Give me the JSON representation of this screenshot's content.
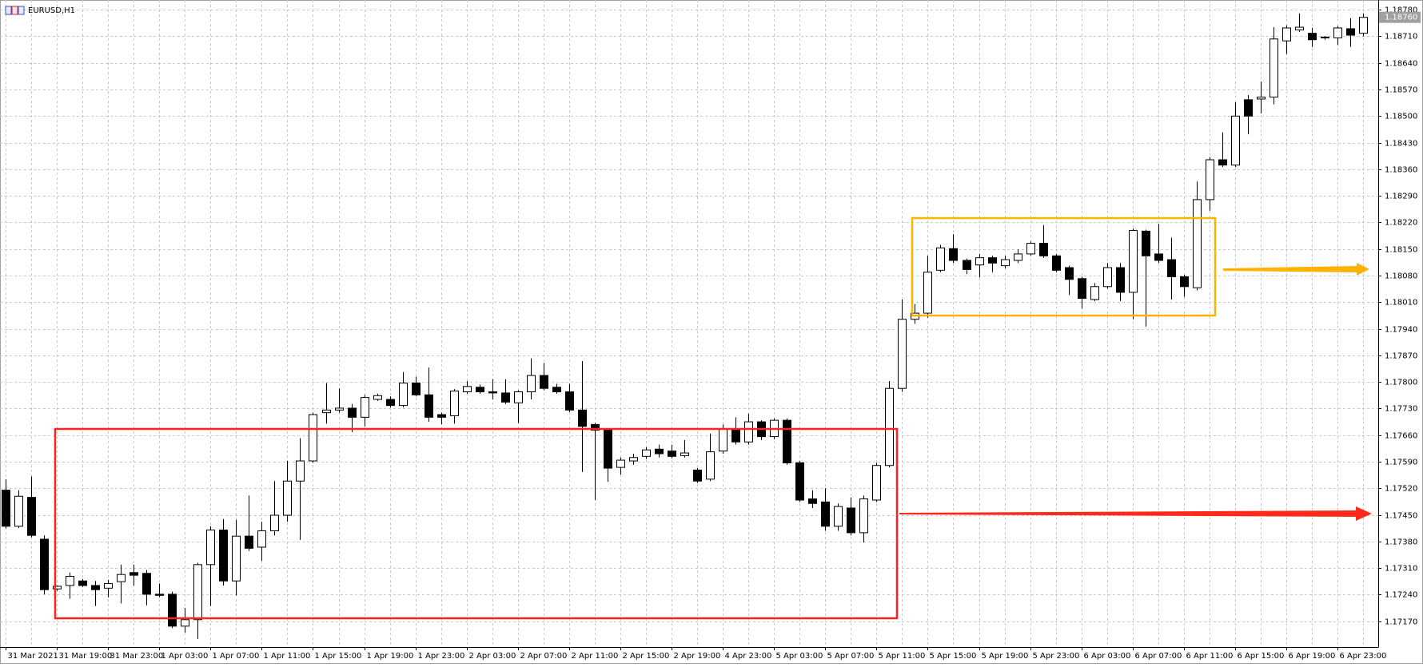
{
  "chart_data": {
    "type": "candlestick",
    "title": "EURUSD,H1",
    "categories": [
      "31 Mar 2021",
      null,
      null,
      null,
      "31 Mar 19:00",
      null,
      null,
      null,
      "31 Mar 23:00",
      null,
      null,
      null,
      "1 Apr 03:00",
      null,
      null,
      null,
      "1 Apr 07:00",
      null,
      null,
      null,
      "1 Apr 11:00",
      null,
      null,
      null,
      "1 Apr 15:00",
      null,
      null,
      null,
      "1 Apr 19:00",
      null,
      null,
      null,
      "1 Apr 23:00",
      null,
      null,
      null,
      "2 Apr 03:00",
      null,
      null,
      null,
      "2 Apr 07:00",
      null,
      null,
      null,
      "2 Apr 11:00",
      null,
      null,
      null,
      "2 Apr 15:00",
      null,
      null,
      null,
      "2 Apr 19:00",
      null,
      null,
      null,
      "4 Apr 23:00",
      null,
      null,
      null,
      "5 Apr 03:00",
      null,
      null,
      null,
      "5 Apr 07:00",
      null,
      null,
      null,
      "5 Apr 11:00",
      null,
      null,
      null,
      "5 Apr 15:00",
      null,
      null,
      null,
      "5 Apr 19:00",
      null,
      null,
      null,
      "5 Apr 23:00",
      null,
      null,
      null,
      "6 Apr 03:00",
      null,
      null,
      null,
      "6 Apr 07:00",
      null,
      null,
      null,
      "6 Apr 11:00",
      null,
      null,
      null,
      "6 Apr 15:00",
      null,
      null,
      null,
      "6 Apr 19:00",
      null,
      null,
      null,
      "6 Apr 23:00",
      null,
      null
    ],
    "open": [
      1.17515,
      1.1742,
      1.17496,
      1.17386,
      1.17255,
      1.17264,
      1.17276,
      1.17264,
      1.17257,
      1.17274,
      1.17298,
      1.17296,
      1.17241,
      1.17241,
      1.17157,
      1.17174,
      1.17319,
      1.1741,
      1.17276,
      1.17394,
      1.17365,
      1.17408,
      1.17449,
      1.17539,
      1.17592,
      1.17719,
      1.17726,
      1.17731,
      1.17707,
      1.17754,
      1.17754,
      1.17738,
      1.17797,
      1.17766,
      1.17714,
      1.17711,
      1.17774,
      1.17786,
      1.17774,
      1.17771,
      1.17745,
      1.17774,
      1.17817,
      1.17786,
      1.17774,
      1.17726,
      1.17688,
      1.17673,
      1.17575,
      1.17592,
      1.17604,
      1.17623,
      1.17618,
      1.17606,
      1.17568,
      1.17544,
      1.17618,
      1.17676,
      1.17642,
      1.17695,
      1.17656,
      1.17699,
      1.17587,
      1.17492,
      1.17484,
      1.1742,
      1.17468,
      1.17403,
      1.17489,
      1.1758,
      1.17783,
      1.17965,
      1.17981,
      1.18094,
      1.18151,
      1.1812,
      1.18108,
      1.18127,
      1.18106,
      1.1812,
      1.18137,
      1.18165,
      1.18132,
      1.18101,
      1.18072,
      1.18017,
      1.18051,
      1.18101,
      1.18036,
      1.18197,
      1.18137,
      1.18122,
      1.18077,
      1.18048,
      1.1828,
      1.18385,
      1.18371,
      1.18543,
      1.18545,
      1.1855,
      1.18698,
      1.18727,
      1.18718,
      1.18708,
      1.18706,
      1.1873,
      1.18718
    ],
    "high": [
      1.17544,
      1.17515,
      1.17551,
      1.17396,
      1.17264,
      1.17298,
      1.17281,
      1.17276,
      1.17279,
      1.17319,
      1.17319,
      1.17305,
      1.17269,
      1.17248,
      1.17205,
      1.17324,
      1.1742,
      1.17439,
      1.17437,
      1.17501,
      1.17432,
      1.17539,
      1.17592,
      1.17652,
      1.17719,
      1.17797,
      1.17783,
      1.17742,
      1.17766,
      1.17769,
      1.17762,
      1.17826,
      1.17814,
      1.17838,
      1.17719,
      1.17781,
      1.17802,
      1.17793,
      1.17807,
      1.17807,
      1.17778,
      1.17862,
      1.1785,
      1.17795,
      1.17795,
      1.17855,
      1.17692,
      1.17678,
      1.17601,
      1.17611,
      1.17628,
      1.17635,
      1.17635,
      1.17647,
      1.17573,
      1.17664,
      1.17688,
      1.17707,
      1.17716,
      1.17699,
      1.17704,
      1.17704,
      1.17592,
      1.17515,
      1.1752,
      1.1748,
      1.17496,
      1.17501,
      1.17587,
      1.17802,
      1.18017,
      1.18005,
      1.18132,
      1.18161,
      1.18189,
      1.18125,
      1.18137,
      1.18132,
      1.18132,
      1.18149,
      1.1817,
      1.18213,
      1.18137,
      1.18106,
      1.18077,
      1.1806,
      1.18113,
      1.18113,
      1.18204,
      1.18201,
      1.18216,
      1.1818,
      1.18082,
      1.18328,
      1.18392,
      1.18457,
      1.18536,
      1.18555,
      1.18591,
      1.18734,
      1.18739,
      1.1877,
      1.18732,
      1.1871,
      1.18737,
      1.18758,
      1.1877
    ],
    "low": [
      1.17414,
      1.17415,
      1.17391,
      1.17241,
      1.1725,
      1.17229,
      1.1726,
      1.1721,
      1.17233,
      1.17217,
      1.17264,
      1.17212,
      1.17233,
      1.17152,
      1.1714,
      1.17123,
      1.1721,
      1.17264,
      1.17238,
      1.17355,
      1.17329,
      1.17396,
      1.17432,
      1.17384,
      1.17587,
      1.1769,
      1.17719,
      1.17668,
      1.17683,
      1.1775,
      1.17733,
      1.17733,
      1.17762,
      1.17695,
      1.17688,
      1.1769,
      1.17769,
      1.17769,
      1.17754,
      1.17742,
      1.17692,
      1.17754,
      1.17778,
      1.17769,
      1.17721,
      1.17563,
      1.17489,
      1.17537,
      1.17556,
      1.17582,
      1.17597,
      1.17601,
      1.17599,
      1.17601,
      1.17534,
      1.17539,
      1.17611,
      1.17635,
      1.17635,
      1.17647,
      1.17649,
      1.17582,
      1.17484,
      1.17468,
      1.17408,
      1.17408,
      1.17396,
      1.17377,
      1.17484,
      1.17575,
      1.17774,
      1.17953,
      1.17969,
      1.18089,
      1.18113,
      1.18084,
      1.18075,
      1.18089,
      1.18099,
      1.18113,
      1.18132,
      1.18127,
      1.18089,
      1.18029,
      1.17993,
      1.18013,
      1.18046,
      1.18013,
      1.17965,
      1.17946,
      1.18113,
      1.18017,
      1.18024,
      1.18041,
      1.18251,
      1.18366,
      1.18366,
      1.18452,
      1.18507,
      1.18531,
      1.18663,
      1.18722,
      1.18682,
      1.18701,
      1.18687,
      1.18682,
      1.1871
    ],
    "close": [
      1.1742,
      1.17499,
      1.17396,
      1.17253,
      1.17262,
      1.17288,
      1.17264,
      1.17253,
      1.17269,
      1.17293,
      1.17291,
      1.17241,
      1.17238,
      1.17157,
      1.17174,
      1.17319,
      1.1741,
      1.17276,
      1.17394,
      1.17362,
      1.17408,
      1.17449,
      1.17539,
      1.17592,
      1.17714,
      1.17726,
      1.17731,
      1.17707,
      1.17759,
      1.17764,
      1.17738,
      1.17797,
      1.17766,
      1.17707,
      1.17707,
      1.17776,
      1.17788,
      1.17774,
      1.17771,
      1.17747,
      1.17774,
      1.17817,
      1.17783,
      1.17774,
      1.17726,
      1.17683,
      1.17673,
      1.17573,
      1.17594,
      1.17601,
      1.17621,
      1.17611,
      1.17604,
      1.17613,
      1.17539,
      1.17616,
      1.17676,
      1.17642,
      1.17695,
      1.17656,
      1.17699,
      1.17587,
      1.17489,
      1.1748,
      1.1742,
      1.17472,
      1.17403,
      1.17492,
      1.1758,
      1.17783,
      1.17965,
      1.17981,
      1.18089,
      1.18153,
      1.1812,
      1.18096,
      1.18127,
      1.18113,
      1.18122,
      1.18137,
      1.18165,
      1.18132,
      1.18094,
      1.1807,
      1.1802,
      1.18051,
      1.18101,
      1.18036,
      1.18199,
      1.18132,
      1.1812,
      1.18077,
      1.18051,
      1.1828,
      1.18385,
      1.18371,
      1.185,
      1.185,
      1.1855,
      1.18703,
      1.18732,
      1.18734,
      1.18701,
      1.18706,
      1.18732,
      1.18713,
      1.1876
    ],
    "up_color": "#ffffff",
    "down_color": "#000000",
    "line_color": "#000000",
    "grid": true,
    "last_price": {
      "value": 1.1876,
      "label": "1.18760"
    },
    "ylim": [
      1.17102,
      1.18793
    ],
    "yticks": [
      {
        "value": 1.1878,
        "label": "1.18780"
      },
      {
        "value": 1.1871,
        "label": "1.18710"
      },
      {
        "value": 1.1864,
        "label": "1.18640"
      },
      {
        "value": 1.1857,
        "label": "1.18570"
      },
      {
        "value": 1.185,
        "label": "1.18500"
      },
      {
        "value": 1.1843,
        "label": "1.18430"
      },
      {
        "value": 1.1836,
        "label": "1.18360"
      },
      {
        "value": 1.1829,
        "label": "1.18290"
      },
      {
        "value": 1.1822,
        "label": "1.18220"
      },
      {
        "value": 1.1815,
        "label": "1.18150"
      },
      {
        "value": 1.1808,
        "label": "1.18080"
      },
      {
        "value": 1.1801,
        "label": "1.18010"
      },
      {
        "value": 1.1794,
        "label": "1.17940"
      },
      {
        "value": 1.1787,
        "label": "1.17870"
      },
      {
        "value": 1.178,
        "label": "1.17800"
      },
      {
        "value": 1.1773,
        "label": "1.17730"
      },
      {
        "value": 1.1766,
        "label": "1.17660"
      },
      {
        "value": 1.1759,
        "label": "1.17590"
      },
      {
        "value": 1.1752,
        "label": "1.17520"
      },
      {
        "value": 1.1745,
        "label": "1.17450"
      },
      {
        "value": 1.1738,
        "label": "1.17380"
      },
      {
        "value": 1.1731,
        "label": "1.17310"
      },
      {
        "value": 1.1724,
        "label": "1.17240"
      },
      {
        "value": 1.1717,
        "label": "1.17170"
      }
    ]
  }
}
